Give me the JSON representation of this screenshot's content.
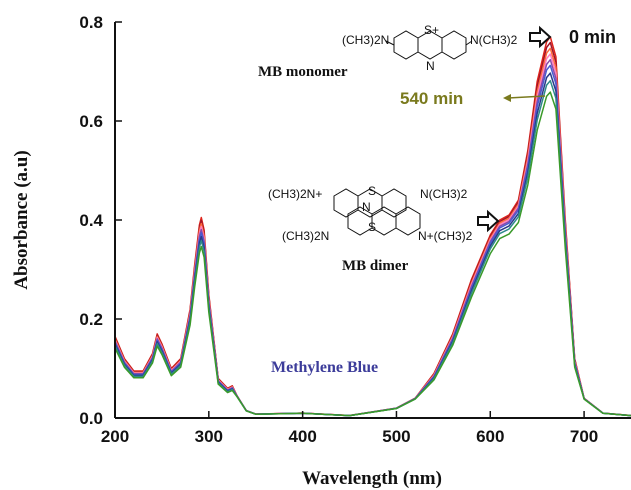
{
  "chart_data": {
    "type": "line",
    "title": "",
    "xlabel": "Wavelength (nm)",
    "ylabel": "Absorbance (a.u)",
    "xlim": [
      200,
      750
    ],
    "ylim": [
      0.0,
      0.8
    ],
    "x_ticks": [
      "200",
      "300",
      "400",
      "500",
      "600",
      "700"
    ],
    "y_ticks": [
      "0.0",
      "0.2",
      "0.4",
      "0.6",
      "0.8"
    ],
    "grid": false,
    "legend": "none",
    "x": [
      200,
      210,
      220,
      230,
      240,
      245,
      250,
      260,
      270,
      280,
      285,
      290,
      292,
      295,
      300,
      310,
      320,
      325,
      330,
      340,
      350,
      400,
      450,
      500,
      520,
      540,
      560,
      580,
      600,
      610,
      620,
      630,
      640,
      650,
      660,
      664,
      670,
      680,
      690,
      700,
      720,
      750
    ],
    "reference": [
      0.165,
      0.12,
      0.095,
      0.095,
      0.13,
      0.17,
      0.15,
      0.1,
      0.12,
      0.22,
      0.31,
      0.39,
      0.405,
      0.38,
      0.25,
      0.08,
      0.06,
      0.065,
      0.045,
      0.015,
      0.008,
      0.01,
      0.005,
      0.02,
      0.04,
      0.09,
      0.17,
      0.28,
      0.37,
      0.4,
      0.41,
      0.44,
      0.54,
      0.68,
      0.76,
      0.77,
      0.73,
      0.4,
      0.12,
      0.04,
      0.01,
      0.005
    ],
    "dimer_ratio": [
      1,
      1,
      1,
      1,
      1,
      1,
      1,
      1,
      1,
      1,
      1,
      1,
      1,
      1,
      1,
      1,
      1,
      1,
      1,
      1,
      1,
      1,
      1,
      1,
      1,
      1,
      1.01,
      1.02,
      1.05,
      1.06,
      1.06,
      1.05,
      1.02,
      1,
      1,
      1,
      1,
      1,
      1,
      1,
      1,
      1
    ],
    "series": [
      {
        "name": "0 min",
        "color": "#e0241a",
        "scale": 1.0
      },
      {
        "name": "",
        "color": "#a0142a",
        "scale": 0.985
      },
      {
        "name": "",
        "color": "#ff6a3a",
        "scale": 0.97
      },
      {
        "name": "",
        "color": "#ff80c0",
        "scale": 0.955
      },
      {
        "name": "",
        "color": "#8a4aa8",
        "scale": 0.94
      },
      {
        "name": "",
        "color": "#4a5ad0",
        "scale": 0.925
      },
      {
        "name": "",
        "color": "#2a3a8a",
        "scale": 0.905
      },
      {
        "name": "",
        "color": "#2e8a8a",
        "scale": 0.885
      },
      {
        "name": "540 min",
        "color": "#3a9a2a",
        "scale": 0.855
      }
    ],
    "annotations": {
      "mb_monomer": "MB monomer",
      "mb_dimer": "MB dimer",
      "time_start": "0 min",
      "time_end": "540 min",
      "dye": "Methylene Blue"
    },
    "structure_labels": {
      "monomer_left": "(CH3)2N",
      "monomer_right": "N(CH3)2",
      "monomer_s": "S+",
      "monomer_n": "N",
      "dimer_top_left": "(CH3)2N+",
      "dimer_top_right": "N(CH3)2",
      "dimer_bottom_left": "(CH3)2N",
      "dimer_bottom_right": "N+(CH3)2",
      "dimer_s": "S",
      "dimer_n": "N"
    }
  },
  "colors": {
    "axis": "#111111",
    "time_end_label": "#7a7a1e",
    "dye_label": "#3c3c9a"
  }
}
